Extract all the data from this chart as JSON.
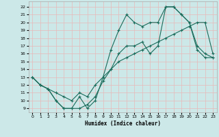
{
  "xlabel": "Humidex (Indice chaleur)",
  "bg_color": "#cce8e8",
  "line_color": "#1a6b5a",
  "xlim": [
    -0.5,
    23.5
  ],
  "ylim": [
    8.5,
    22.7
  ],
  "xticks": [
    0,
    1,
    2,
    3,
    4,
    5,
    6,
    7,
    8,
    9,
    10,
    11,
    12,
    13,
    14,
    15,
    16,
    17,
    18,
    19,
    20,
    21,
    22,
    23
  ],
  "yticks": [
    9,
    10,
    11,
    12,
    13,
    14,
    15,
    16,
    17,
    18,
    19,
    20,
    21,
    22
  ],
  "line1_x": [
    0,
    1,
    2,
    3,
    4,
    5,
    6,
    7,
    8,
    9,
    10,
    11,
    12,
    13,
    14,
    15,
    16,
    17,
    18,
    19,
    20,
    21,
    22,
    23
  ],
  "line1_y": [
    13,
    12,
    11.5,
    10,
    9,
    9,
    9,
    9.5,
    10.5,
    12.5,
    14,
    16,
    17,
    17,
    17.5,
    16,
    17,
    22,
    22,
    21,
    20,
    16.5,
    15.5,
    15.5
  ],
  "line2_x": [
    0,
    1,
    2,
    3,
    4,
    5,
    6,
    7,
    8,
    9,
    10,
    11,
    12,
    13,
    14,
    15,
    16,
    17,
    18,
    19,
    20,
    21,
    22,
    23
  ],
  "line2_y": [
    13,
    12,
    11.5,
    11,
    10.5,
    10,
    11,
    10.5,
    12,
    13,
    14,
    15,
    15.5,
    16,
    16.5,
    17,
    17.5,
    18,
    18.5,
    19,
    19.5,
    20,
    20,
    16
  ],
  "line3_x": [
    0,
    1,
    2,
    3,
    4,
    5,
    6,
    7,
    8,
    9,
    10,
    11,
    12,
    13,
    14,
    15,
    16,
    17,
    18,
    19,
    20,
    21,
    22,
    23
  ],
  "line3_y": [
    13,
    12,
    11.5,
    10,
    9,
    9,
    10.5,
    9,
    10,
    13,
    16.5,
    19,
    21,
    20,
    19.5,
    20,
    20,
    22,
    22,
    21,
    20,
    17,
    16,
    15.5
  ]
}
